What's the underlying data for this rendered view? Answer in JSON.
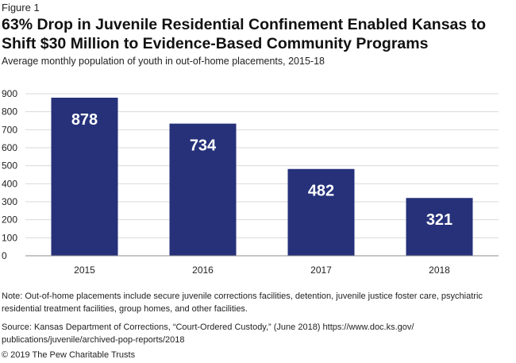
{
  "figure_label": "Figure 1",
  "title_line1": "63% Drop in Juvenile Residential Confinement Enabled Kansas to",
  "title_line2": "Shift $30 Million to Evidence-Based Community Programs",
  "subtitle": "Average monthly population of youth in out-of-home placements, 2015-18",
  "note": "Note: Out-of-home placements include secure juvenile corrections facilities, detention, juvenile justice foster care, psychiatric residential treatment facilities, group homes, and other facilities.",
  "source_line1": "Source: Kansas Department of Corrections, “Court-Ordered Custody,” (June 2018) https://www.doc.ks.gov/",
  "source_line2": "publications/juvenile/archived-pop-reports/2018",
  "copyright": "© 2019 The Pew Charitable Trusts",
  "colors": {
    "bar": "#26317a",
    "grid": "#d9d9d9",
    "axis": "#8c8c8c",
    "bar_label": "#ffffff"
  },
  "chart_data": {
    "type": "bar",
    "categories": [
      "2015",
      "2016",
      "2017",
      "2018"
    ],
    "values": [
      878,
      734,
      482,
      321
    ],
    "data_labels": [
      "878",
      "734",
      "482",
      "321"
    ],
    "ylim": [
      0,
      900
    ],
    "yticks": [
      0,
      100,
      200,
      300,
      400,
      500,
      600,
      700,
      800,
      900
    ],
    "grid": true,
    "xlabel": "",
    "ylabel": ""
  }
}
